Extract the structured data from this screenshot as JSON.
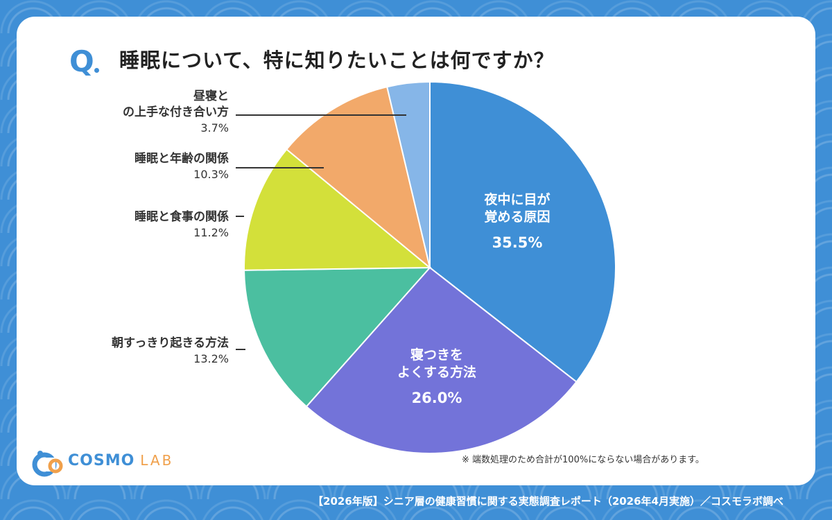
{
  "question": {
    "marker": "Q",
    "text": "睡眠について、特に知りたいことは何ですか？"
  },
  "chart_data": {
    "type": "pie",
    "title": "睡眠について、特に知りたいことは何ですか？",
    "slices": [
      {
        "label": "夜中に目が覚める原因",
        "lines": [
          "夜中に目が",
          "覚める原因"
        ],
        "value": 35.5,
        "pct_label": "35.5%",
        "color": "#3f8fd6"
      },
      {
        "label": "寝つきをよくする方法",
        "lines": [
          "寝つきを",
          "よくする方法"
        ],
        "value": 26.0,
        "pct_label": "26.0%",
        "color": "#7373d9"
      },
      {
        "label": "朝すっきり起きる方法",
        "lines": [
          "朝すっきり起きる方法"
        ],
        "value": 13.2,
        "pct_label": "13.2%",
        "color": "#4bbfa0"
      },
      {
        "label": "睡眠と食事の関係",
        "lines": [
          "睡眠と食事の関係"
        ],
        "value": 11.2,
        "pct_label": "11.2%",
        "color": "#d3e03a"
      },
      {
        "label": "睡眠と年齢の関係",
        "lines": [
          "睡眠と年齢の関係"
        ],
        "value": 10.3,
        "pct_label": "10.3%",
        "color": "#f2a96a"
      },
      {
        "label": "昼寝との上手な付き合い方",
        "lines": [
          "昼寝と",
          "の上手な付き合い方"
        ],
        "value": 3.7,
        "pct_label": "3.7%",
        "color": "#86b6e8"
      }
    ],
    "start": "12 o'clock",
    "direction": "clockwise"
  },
  "note": "※ 端数処理のため合計が100%にならない場合があります。",
  "logo": {
    "name": "COSMO",
    "sub": "LAB"
  },
  "footer": "【2026年版】シニア層の健康習慣に関する実態調査レポート（2026年4月実施）／コスモラボ調べ"
}
